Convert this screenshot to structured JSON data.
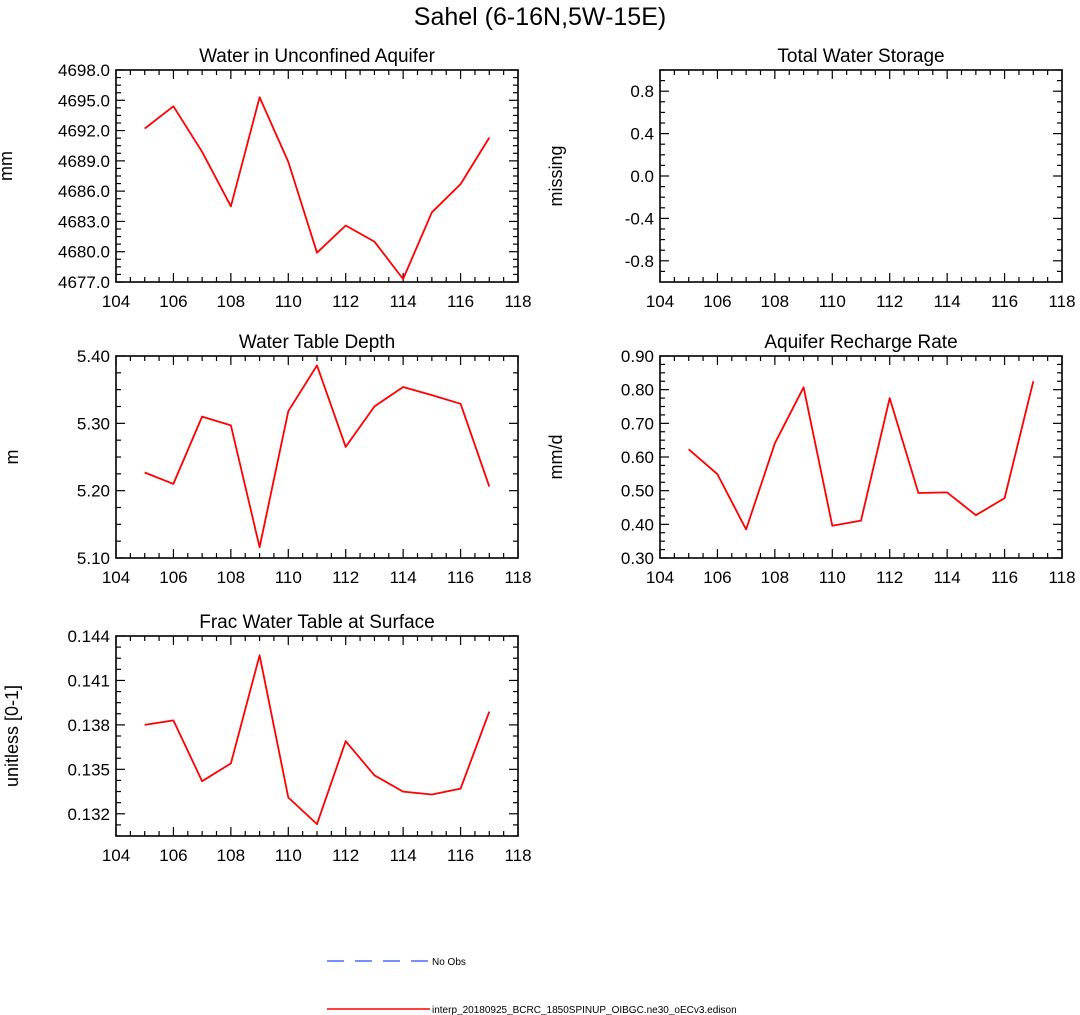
{
  "figure_title": "Sahel (6-16N,5W-15E)",
  "colors": {
    "model": "#ff0000",
    "obs": "#4a6cff"
  },
  "legend": {
    "obs_label": "No Obs",
    "model_label": "interp_20180925_BCRC_1850SPINUP_OIBGC.ne30_oECv3.edison"
  },
  "chart_data": [
    {
      "type": "line",
      "title": "Water in Unconfined Aquifer",
      "xlabel": "",
      "ylabel": "mm",
      "xlim": [
        104,
        118
      ],
      "xticks": [
        104,
        106,
        108,
        110,
        112,
        114,
        116,
        118
      ],
      "ylim": [
        4677,
        4698
      ],
      "yticks": [
        4677,
        4680,
        4683,
        4686,
        4689,
        4692,
        4695,
        4698
      ],
      "ytick_labels": [
        "4677.0",
        "4680.0",
        "4683.0",
        "4686.0",
        "4689.0",
        "4692.0",
        "4695.0",
        "4698.0"
      ],
      "x": [
        105,
        106,
        107,
        108,
        109,
        110,
        111,
        112,
        113,
        114,
        115,
        116,
        117
      ],
      "series": [
        {
          "name": "interp_20180925_BCRC_1850SPINUP_OIBGC.ne30_oECv3.edison",
          "values": [
            4692.2,
            4694.4,
            4689.9,
            4684.5,
            4695.3,
            4688.9,
            4679.9,
            4682.6,
            4681.0,
            4677.3,
            4683.9,
            4686.7,
            4691.3
          ]
        }
      ]
    },
    {
      "type": "line",
      "title": "Total Water Storage",
      "xlabel": "",
      "ylabel": "missing",
      "xlim": [
        104,
        118
      ],
      "xticks": [
        104,
        106,
        108,
        110,
        112,
        114,
        116,
        118
      ],
      "ylim": [
        -1,
        1
      ],
      "yticks": [
        -0.8,
        -0.4,
        0.0,
        0.4,
        0.8
      ],
      "ytick_labels": [
        "-0.8",
        "-0.4",
        "0.0",
        "0.4",
        "0.8"
      ],
      "x": [],
      "series": []
    },
    {
      "type": "line",
      "title": "Water Table Depth",
      "xlabel": "",
      "ylabel": "m",
      "xlim": [
        104,
        118
      ],
      "xticks": [
        104,
        106,
        108,
        110,
        112,
        114,
        116,
        118
      ],
      "ylim": [
        5.1,
        5.4
      ],
      "yticks": [
        5.1,
        5.2,
        5.3,
        5.4
      ],
      "ytick_labels": [
        "5.10",
        "5.20",
        "5.30",
        "5.40"
      ],
      "x": [
        105,
        106,
        107,
        108,
        109,
        110,
        111,
        112,
        113,
        114,
        115,
        116,
        117
      ],
      "series": [
        {
          "name": "interp_20180925_BCRC_1850SPINUP_OIBGC.ne30_oECv3.edison",
          "values": [
            5.227,
            5.21,
            5.31,
            5.297,
            5.116,
            5.318,
            5.386,
            5.265,
            5.325,
            5.354,
            5.342,
            5.329,
            5.206
          ]
        }
      ]
    },
    {
      "type": "line",
      "title": "Aquifer Recharge Rate",
      "xlabel": "",
      "ylabel": "mm/d",
      "xlim": [
        104,
        118
      ],
      "xticks": [
        104,
        106,
        108,
        110,
        112,
        114,
        116,
        118
      ],
      "ylim": [
        0.3,
        0.9
      ],
      "yticks": [
        0.3,
        0.4,
        0.5,
        0.6,
        0.7,
        0.8,
        0.9
      ],
      "ytick_labels": [
        "0.30",
        "0.40",
        "0.50",
        "0.60",
        "0.70",
        "0.80",
        "0.90"
      ],
      "x": [
        105,
        106,
        107,
        108,
        109,
        110,
        111,
        112,
        113,
        114,
        115,
        116,
        117
      ],
      "series": [
        {
          "name": "interp_20180925_BCRC_1850SPINUP_OIBGC.ne30_oECv3.edison",
          "values": [
            0.623,
            0.549,
            0.385,
            0.641,
            0.807,
            0.396,
            0.411,
            0.775,
            0.493,
            0.495,
            0.427,
            0.478,
            0.825
          ]
        }
      ]
    },
    {
      "type": "line",
      "title": "Frac Water Table at Surface",
      "xlabel": "",
      "ylabel": "unitless [0-1]",
      "xlim": [
        104,
        118
      ],
      "xticks": [
        104,
        106,
        108,
        110,
        112,
        114,
        116,
        118
      ],
      "ylim": [
        0.1305,
        0.144
      ],
      "yticks": [
        0.132,
        0.135,
        0.138,
        0.141,
        0.144
      ],
      "ytick_labels": [
        "0.132",
        "0.135",
        "0.138",
        "0.141",
        "0.144"
      ],
      "x": [
        105,
        106,
        107,
        108,
        109,
        110,
        111,
        112,
        113,
        114,
        115,
        116,
        117
      ],
      "series": [
        {
          "name": "interp_20180925_BCRC_1850SPINUP_OIBGC.ne30_oECv3.edison",
          "values": [
            0.138,
            0.1383,
            0.1342,
            0.1354,
            0.1427,
            0.1331,
            0.1313,
            0.1369,
            0.1346,
            0.1335,
            0.1333,
            0.1337,
            0.1389
          ]
        }
      ]
    }
  ]
}
